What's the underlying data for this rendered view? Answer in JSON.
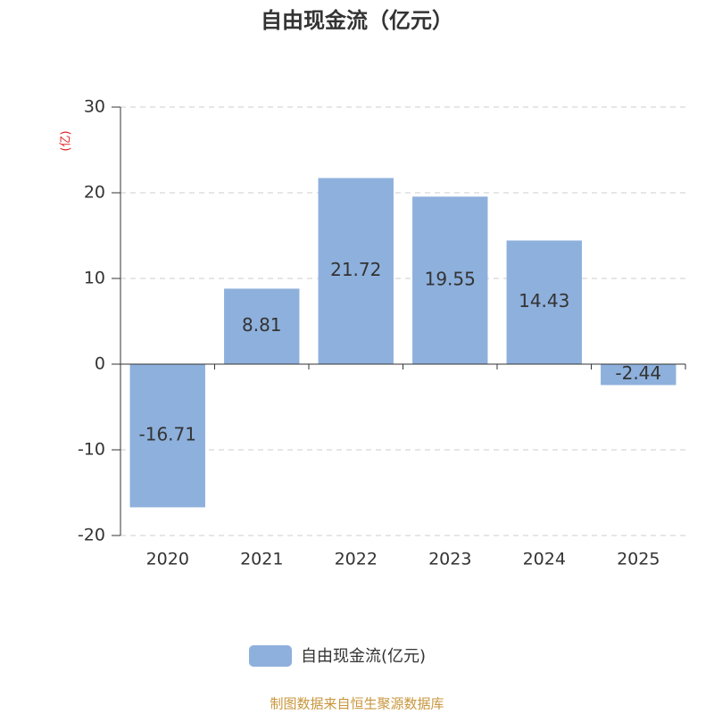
{
  "chart_data": {
    "type": "bar",
    "title": "自由现金流（亿元）",
    "y_label": "(亿)",
    "categories": [
      "2020",
      "2021",
      "2022",
      "2023",
      "2024",
      "2025"
    ],
    "series": [
      {
        "name": "自由现金流(亿元)",
        "color": "#8eb0dc",
        "values": [
          -16.71,
          8.81,
          21.72,
          19.55,
          14.43,
          -2.44
        ]
      }
    ],
    "ylim": [
      -20,
      30
    ],
    "yticks": [
      -20,
      -10,
      0,
      10,
      20,
      30
    ],
    "grid": true,
    "source": "制图数据来自恒生聚源数据库"
  }
}
